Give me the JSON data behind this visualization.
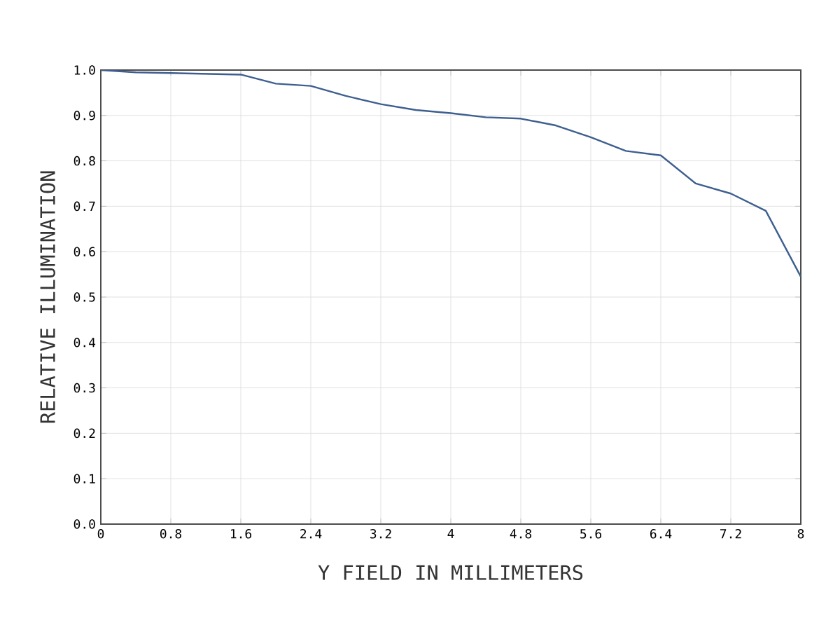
{
  "chart_data": {
    "type": "line",
    "xlabel": "Y FIELD IN MILLIMETERS",
    "ylabel": "RELATIVE ILLUMINATION",
    "x": [
      0,
      0.4,
      1.6,
      2.0,
      2.4,
      2.8,
      3.2,
      3.6,
      4.0,
      4.4,
      4.8,
      5.2,
      5.6,
      6.0,
      6.4,
      6.8,
      7.2,
      7.6,
      8.0
    ],
    "series": [
      {
        "color": "#3d5f8f",
        "values": [
          1.0,
          0.995,
          0.99,
          0.97,
          0.965,
          0.943,
          0.925,
          0.912,
          0.905,
          0.896,
          0.893,
          0.878,
          0.852,
          0.822,
          0.812,
          0.75,
          0.728,
          0.69,
          0.545
        ]
      }
    ],
    "xlim": [
      0,
      8
    ],
    "xticks": [
      0,
      0.8,
      1.6,
      2.4,
      3.2,
      4,
      4.8,
      5.6,
      6.4,
      7.2,
      8
    ],
    "ylim": [
      0,
      1.0
    ],
    "yticks": [
      {
        "value": 0,
        "label": "0.0"
      },
      0.1,
      0.2,
      0.3,
      0.4,
      0.5,
      0.6,
      0.7,
      0.8,
      0.9,
      {
        "value": 1.0,
        "label": "1.0"
      }
    ],
    "grid": true,
    "marker": "none",
    "line_style": "solid"
  }
}
